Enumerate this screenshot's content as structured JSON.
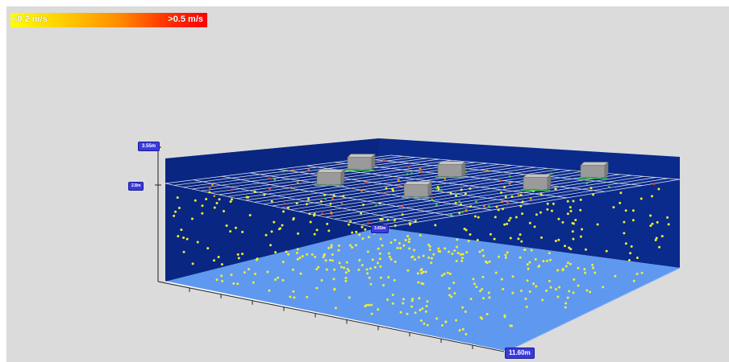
{
  "legend": {
    "min_label": "<0.2 m/s",
    "max_label": ">0.5 m/s",
    "gradient_colors": [
      "#ffff00",
      "#ff8c00",
      "#ff0000"
    ]
  },
  "dimensions": {
    "height_label": "3.55m",
    "mid_height_label": "2.8m",
    "width_label": "3.65m",
    "length_label": "11.60m"
  },
  "scene": {
    "background_color": "#dbdbdb",
    "wall_color": "#0a2a8c",
    "floor_color": "#5f98ef",
    "grid_color": "#ffffff",
    "particle_color": "#eeee30",
    "diffuser_color": "#9a9a9a",
    "diffuser_count": 6
  }
}
